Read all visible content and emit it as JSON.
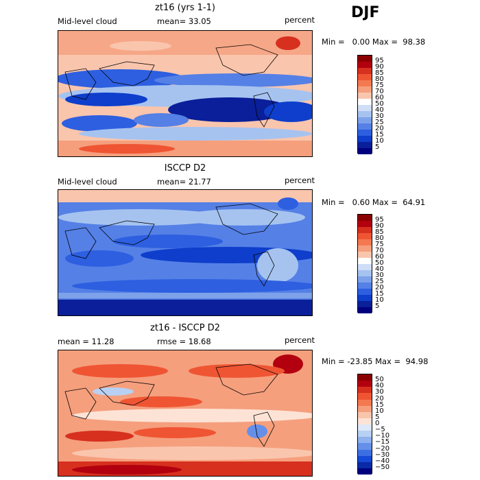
{
  "season": "DJF",
  "panels": [
    {
      "title": "zt16 (yrs 1-1)",
      "left_label": "Mid-level cloud",
      "mean_label": "mean=  33.05",
      "units": "percent",
      "minmax": "Min =   0.00 Max =  98.38",
      "colorbar": {
        "labels": [
          "95",
          "90",
          "85",
          "80",
          "75",
          "70",
          "60",
          "50",
          "40",
          "30",
          "25",
          "20",
          "15",
          "10",
          "5"
        ],
        "colors": [
          "#8b0000",
          "#b2000f",
          "#d7301f",
          "#ef5533",
          "#f47950",
          "#f59f7d",
          "#fac5ad",
          "#ffffff",
          "#cfdef6",
          "#a6c3f0",
          "#7ea2ea",
          "#5580e6",
          "#2d5fe0",
          "#0e3ecb",
          "#0a1f99",
          "#00007f"
        ]
      },
      "map_description": "mostly blue tropics and subtropics with red high latitudes"
    },
    {
      "title": "ISCCP D2",
      "left_label": "Mid-level cloud",
      "mean_label": "mean=  21.77",
      "units": "percent",
      "minmax": "Min =   0.60 Max =  64.91",
      "colorbar": {
        "labels": [
          "95",
          "90",
          "85",
          "80",
          "75",
          "70",
          "60",
          "50",
          "40",
          "30",
          "25",
          "20",
          "15",
          "10",
          "5"
        ],
        "colors": [
          "#8b0000",
          "#b2000f",
          "#d7301f",
          "#ef5533",
          "#f47950",
          "#f59f7d",
          "#fac5ad",
          "#ffffff",
          "#cfdef6",
          "#a6c3f0",
          "#7ea2ea",
          "#5580e6",
          "#2d5fe0",
          "#0e3ecb",
          "#0a1f99",
          "#00007f"
        ]
      }
    },
    {
      "title": "zt16 - ISCCP D2",
      "left_label": "mean =  11.28",
      "mean_label": "rmse =  18.68",
      "units": "percent",
      "minmax": "Min = -23.85 Max =  94.98",
      "colorbar": {
        "labels": [
          "50",
          "40",
          "30",
          "20",
          "15",
          "10",
          "5",
          "0",
          "−5",
          "−10",
          "−15",
          "−20",
          "−30",
          "−40",
          "−50"
        ],
        "colors": [
          "#8b0000",
          "#b2000f",
          "#d7301f",
          "#ef5533",
          "#f47950",
          "#f59f7d",
          "#fac5ad",
          "#fde3d6",
          "#dde8f8",
          "#b8d0f3",
          "#8fb1ee",
          "#6590e9",
          "#3d6fe4",
          "#1549d6",
          "#0a2aa8",
          "#00007f"
        ]
      }
    }
  ],
  "chart_data": [
    {
      "type": "heatmap",
      "title": "zt16 (yrs 1-1)",
      "variable": "Mid-level cloud",
      "units": "percent",
      "mean": 33.05,
      "min": 0.0,
      "max": 98.38,
      "levels": [
        5,
        10,
        15,
        20,
        25,
        30,
        40,
        50,
        60,
        70,
        75,
        80,
        85,
        90,
        95
      ]
    },
    {
      "type": "heatmap",
      "title": "ISCCP D2",
      "variable": "Mid-level cloud",
      "units": "percent",
      "mean": 21.77,
      "min": 0.6,
      "max": 64.91,
      "levels": [
        5,
        10,
        15,
        20,
        25,
        30,
        40,
        50,
        60,
        70,
        75,
        80,
        85,
        90,
        95
      ]
    },
    {
      "type": "heatmap",
      "title": "zt16 - ISCCP D2",
      "units": "percent",
      "mean": 11.28,
      "rmse": 18.68,
      "min": -23.85,
      "max": 94.98,
      "levels": [
        -50,
        -40,
        -30,
        -20,
        -15,
        -10,
        -5,
        0,
        5,
        10,
        15,
        20,
        30,
        40,
        50
      ]
    }
  ]
}
